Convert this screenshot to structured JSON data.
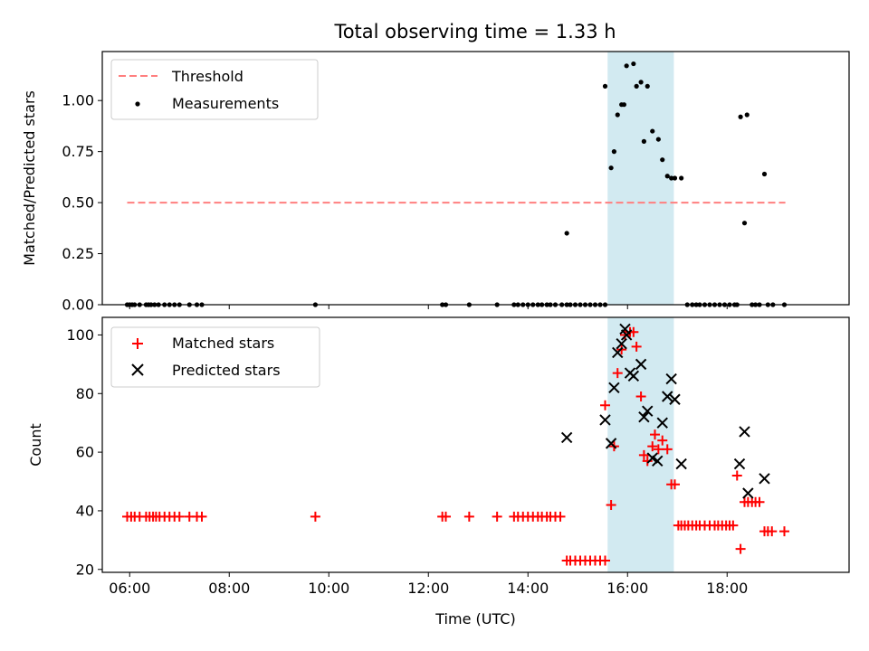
{
  "chart_data": [
    {
      "type": "scatter",
      "title": "Total observing time = 1.33 h",
      "xlabel": "",
      "ylabel": "Matched/Predicted stars",
      "xlim": [
        5.45,
        20.45
      ],
      "ylim": [
        0,
        1.24
      ],
      "xticks": [
        6,
        8,
        10,
        12,
        14,
        16,
        18
      ],
      "xtick_labels": [],
      "yticks": [
        0.0,
        0.25,
        0.5,
        0.75,
        1.0
      ],
      "ytick_labels": [
        "0.00",
        "0.25",
        "0.50",
        "0.75",
        "1.00"
      ],
      "shaded_region": {
        "x0": 15.6,
        "x1": 16.93,
        "color": "#add8e6"
      },
      "legend_position": "upper left",
      "series": [
        {
          "name": "Threshold",
          "kind": "dashed-line",
          "color": "#ff7f7f",
          "x": [
            5.95,
            19.17
          ],
          "y": [
            0.5,
            0.5
          ]
        },
        {
          "name": "Measurements",
          "kind": "dots",
          "color": "#000000",
          "x": [
            5.95,
            6.0,
            6.05,
            6.1,
            6.2,
            6.33,
            6.38,
            6.43,
            6.5,
            6.58,
            6.7,
            6.8,
            6.9,
            7.0,
            7.2,
            7.35,
            7.45,
            9.73,
            12.28,
            12.35,
            12.82,
            13.38,
            13.72,
            13.8,
            13.9,
            14.0,
            14.1,
            14.2,
            14.28,
            14.38,
            14.45,
            14.55,
            14.68,
            14.78,
            14.85,
            14.95,
            15.05,
            15.15,
            15.25,
            15.35,
            15.45,
            15.55,
            14.78,
            15.55,
            15.67,
            15.73,
            15.8,
            15.88,
            15.93,
            15.98,
            16.12,
            16.18,
            16.27,
            16.33,
            16.4,
            16.5,
            16.62,
            16.7,
            16.8,
            16.88,
            16.95,
            17.08,
            17.2,
            17.3,
            17.38,
            17.45,
            17.55,
            17.65,
            17.75,
            17.85,
            17.95,
            18.05,
            18.15,
            18.2,
            18.27,
            18.35,
            18.4,
            18.5,
            18.57,
            18.65,
            18.75,
            18.82,
            18.92,
            19.15
          ],
          "y": [
            0,
            0,
            0,
            0,
            0,
            0,
            0,
            0,
            0,
            0,
            0,
            0,
            0,
            0,
            0,
            0,
            0,
            0,
            0,
            0,
            0,
            0,
            0,
            0,
            0,
            0,
            0,
            0,
            0,
            0,
            0,
            0,
            0,
            0,
            0,
            0,
            0,
            0,
            0,
            0,
            0,
            0,
            0.35,
            1.07,
            0.67,
            0.75,
            0.93,
            0.98,
            0.98,
            1.17,
            1.18,
            1.07,
            1.09,
            0.8,
            1.07,
            0.85,
            0.81,
            0.71,
            0.63,
            0.62,
            0.62,
            0.62,
            0,
            0,
            0,
            0,
            0,
            0,
            0,
            0,
            0,
            0,
            0,
            0,
            0.92,
            0.4,
            0.93,
            0,
            0,
            0,
            0.64,
            0,
            0,
            0
          ]
        }
      ]
    },
    {
      "type": "scatter",
      "title": "",
      "xlabel": "Time (UTC)",
      "ylabel": "Count",
      "xlim": [
        5.45,
        20.45
      ],
      "ylim": [
        19,
        106
      ],
      "xticks": [
        6,
        8,
        10,
        12,
        14,
        16,
        18
      ],
      "xtick_labels": [
        "06:00",
        "08:00",
        "10:00",
        "12:00",
        "14:00",
        "16:00",
        "18:00"
      ],
      "yticks": [
        20,
        40,
        60,
        80,
        100
      ],
      "ytick_labels": [
        "20",
        "40",
        "60",
        "80",
        "100"
      ],
      "shaded_region": {
        "x0": 15.6,
        "x1": 16.93,
        "color": "#add8e6"
      },
      "legend_position": "upper left",
      "series": [
        {
          "name": "Matched stars",
          "marker": "plus",
          "color": "#ff0000",
          "x": [
            5.95,
            6.03,
            6.1,
            6.2,
            6.33,
            6.4,
            6.47,
            6.53,
            6.6,
            6.7,
            6.8,
            6.9,
            7.0,
            7.2,
            7.35,
            7.45,
            9.73,
            12.28,
            12.35,
            12.82,
            13.38,
            13.72,
            13.8,
            13.9,
            14.0,
            14.1,
            14.2,
            14.28,
            14.38,
            14.45,
            14.55,
            14.65,
            14.78,
            14.85,
            14.95,
            15.05,
            15.15,
            15.25,
            15.35,
            15.45,
            15.55,
            15.55,
            15.67,
            15.73,
            15.8,
            15.88,
            15.95,
            16.05,
            16.12,
            16.18,
            16.27,
            16.33,
            16.4,
            16.5,
            16.55,
            16.62,
            16.7,
            16.8,
            16.88,
            16.95,
            17.02,
            17.08,
            17.15,
            17.22,
            17.3,
            17.38,
            17.45,
            17.55,
            17.65,
            17.75,
            17.82,
            17.9,
            17.98,
            18.05,
            18.12,
            18.2,
            18.27,
            18.35,
            18.42,
            18.5,
            18.57,
            18.65,
            18.75,
            18.82,
            18.9,
            19.15
          ],
          "y": [
            38,
            38,
            38,
            38,
            38,
            38,
            38,
            38,
            38,
            38,
            38,
            38,
            38,
            38,
            38,
            38,
            38,
            38,
            38,
            38,
            38,
            38,
            38,
            38,
            38,
            38,
            38,
            38,
            38,
            38,
            38,
            38,
            23,
            23,
            23,
            23,
            23,
            23,
            23,
            23,
            23,
            76,
            42,
            62,
            87,
            95,
            100,
            101,
            101,
            96,
            79,
            59,
            57,
            62,
            66,
            61,
            64,
            61,
            49,
            49,
            35,
            35,
            35,
            35,
            35,
            35,
            35,
            35,
            35,
            35,
            35,
            35,
            35,
            35,
            35,
            52,
            27,
            43,
            43,
            43,
            43,
            43,
            33,
            33,
            33,
            33
          ]
        },
        {
          "name": "Predicted stars",
          "marker": "x",
          "color": "#000000",
          "x": [
            14.78,
            15.55,
            15.67,
            15.73,
            15.8,
            15.88,
            15.95,
            15.98,
            16.05,
            16.12,
            16.27,
            16.33,
            16.4,
            16.5,
            16.6,
            16.7,
            16.8,
            16.88,
            16.95,
            17.08,
            18.25,
            18.35,
            18.42,
            18.75
          ],
          "y": [
            65,
            71,
            63,
            82,
            94,
            97,
            102,
            100,
            87,
            86,
            90,
            72,
            74,
            58,
            57,
            70,
            79,
            85,
            78,
            56,
            56,
            67,
            46,
            51
          ]
        }
      ]
    }
  ]
}
